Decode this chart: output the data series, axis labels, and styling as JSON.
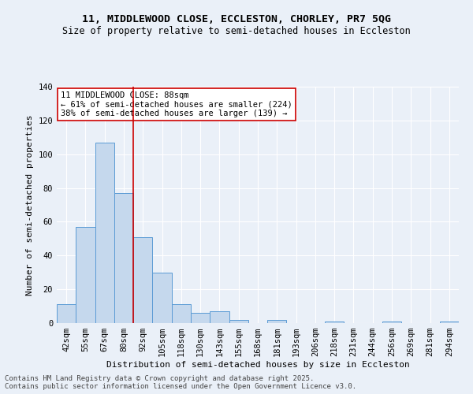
{
  "title_line1": "11, MIDDLEWOOD CLOSE, ECCLESTON, CHORLEY, PR7 5QG",
  "title_line2": "Size of property relative to semi-detached houses in Eccleston",
  "xlabel": "Distribution of semi-detached houses by size in Eccleston",
  "ylabel": "Number of semi-detached properties",
  "categories": [
    "42sqm",
    "55sqm",
    "67sqm",
    "80sqm",
    "92sqm",
    "105sqm",
    "118sqm",
    "130sqm",
    "143sqm",
    "155sqm",
    "168sqm",
    "181sqm",
    "193sqm",
    "206sqm",
    "218sqm",
    "231sqm",
    "244sqm",
    "256sqm",
    "269sqm",
    "281sqm",
    "294sqm"
  ],
  "values": [
    11,
    57,
    107,
    77,
    51,
    30,
    11,
    6,
    7,
    2,
    0,
    2,
    0,
    0,
    1,
    0,
    0,
    1,
    0,
    0,
    1
  ],
  "bar_color": "#c5d8ed",
  "bar_edge_color": "#5b9bd5",
  "vline_color": "#cc0000",
  "vline_pos": 3.5,
  "annotation_title": "11 MIDDLEWOOD CLOSE: 88sqm",
  "annotation_line1": "← 61% of semi-detached houses are smaller (224)",
  "annotation_line2": "38% of semi-detached houses are larger (139) →",
  "annotation_box_color": "#ffffff",
  "annotation_box_edge": "#cc0000",
  "ylim": [
    0,
    140
  ],
  "yticks": [
    0,
    20,
    40,
    60,
    80,
    100,
    120,
    140
  ],
  "bg_color": "#eaf0f8",
  "plot_bg_color": "#eaf0f8",
  "footer_line1": "Contains HM Land Registry data © Crown copyright and database right 2025.",
  "footer_line2": "Contains public sector information licensed under the Open Government Licence v3.0.",
  "title_fontsize": 9.5,
  "subtitle_fontsize": 8.5,
  "axis_label_fontsize": 8,
  "tick_fontsize": 7.5,
  "annotation_fontsize": 7.5,
  "footer_fontsize": 6.5
}
